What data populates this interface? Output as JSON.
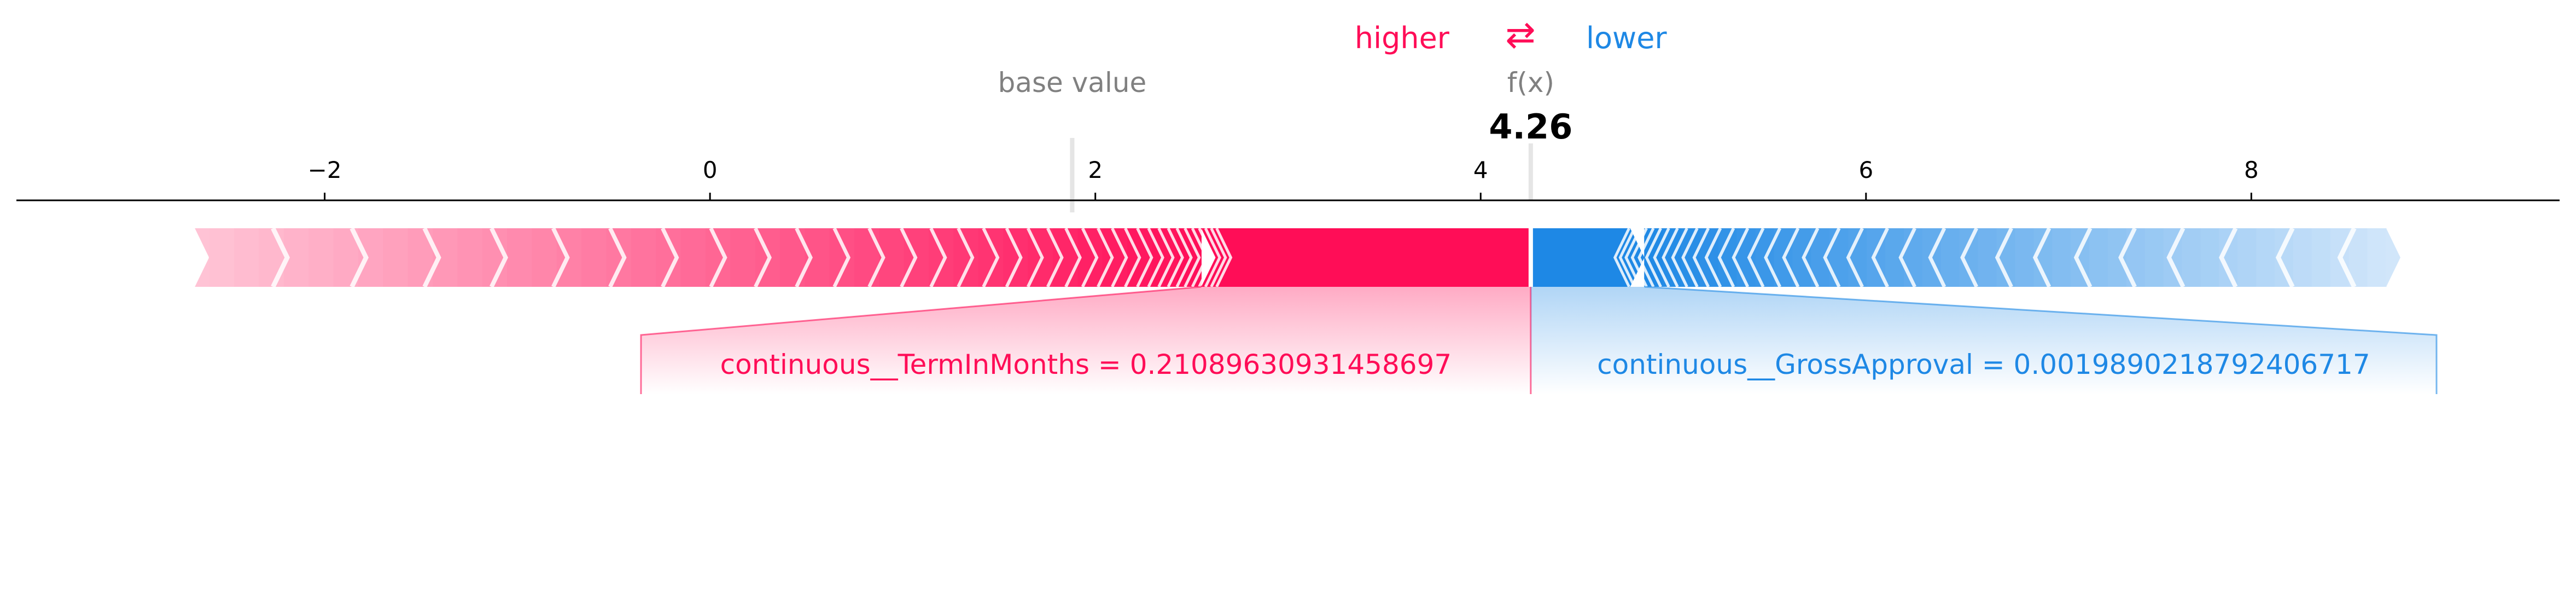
{
  "chart_data": {
    "type": "force",
    "header": {
      "higher_label": "higher",
      "arrow_symbol": "⇄",
      "lower_label": "lower"
    },
    "base_value_label": "base value",
    "fx_label": "f(x)",
    "fx_value_text": "4.26",
    "base_value": 1.88,
    "output_value": 4.26,
    "xlim": [
      -3.6,
      9.6
    ],
    "x_ticks": [
      -2,
      0,
      2,
      4,
      6,
      8
    ],
    "x_tick_labels": [
      "−2",
      "0",
      "2",
      "4",
      "6",
      "8"
    ],
    "bar_extent": [
      -2.6,
      8.7
    ],
    "features": [
      {
        "label": "continuous__TermInMonths = 0.21089630931458697",
        "effect": "higher",
        "start": 2.55,
        "end": 4.26
      },
      {
        "label": "continuous__GrossApproval = 0.0019890218792406717",
        "effect": "lower",
        "start": 4.26,
        "end": 4.85
      }
    ],
    "colors": {
      "positive": "#ff0d57",
      "negative": "#1e88e5",
      "positive_light": "#ffc3d5",
      "negative_light": "#d1e6fa",
      "base_line": "#e5e5e5",
      "axis": "#000000",
      "label_gray": "#808080"
    }
  }
}
